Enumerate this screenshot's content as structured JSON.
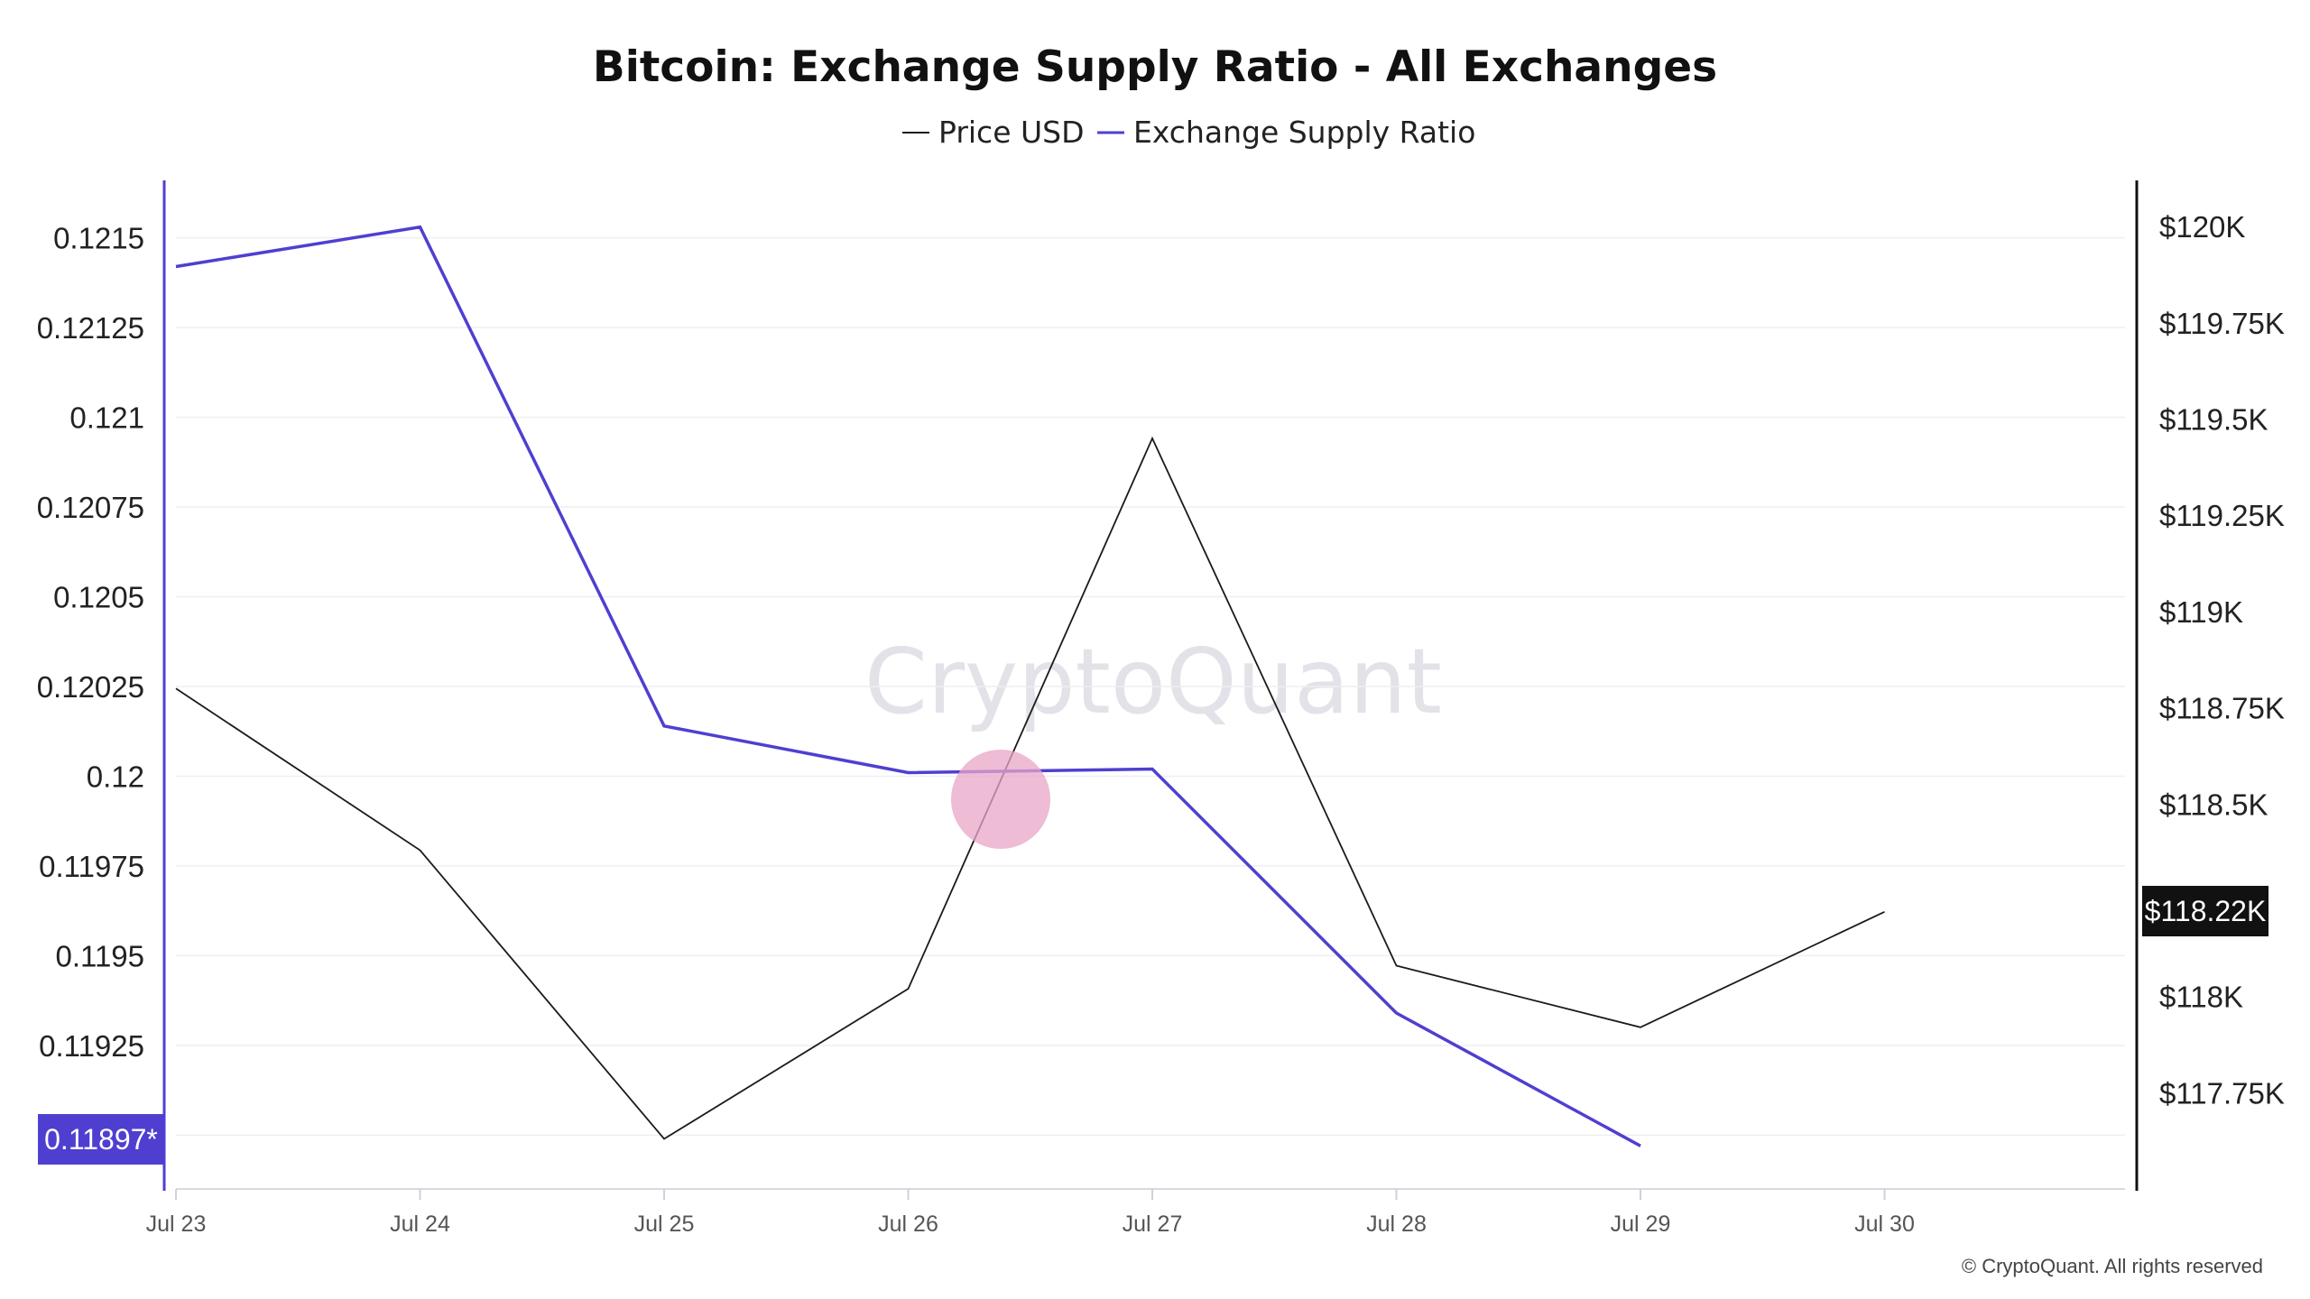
{
  "chart_data": {
    "type": "line",
    "title": "Bitcoin: Exchange Supply Ratio - All Exchanges",
    "legend": [
      "Price USD",
      "Exchange Supply Ratio"
    ],
    "legend_position": "top-center",
    "x": [
      "Jul 23",
      "Jul 24",
      "Jul 25",
      "Jul 26",
      "Jul 27",
      "Jul 28",
      "Jul 29",
      "Jul 30"
    ],
    "series": [
      {
        "name": "Price USD",
        "axis": "right",
        "color": "#1a1a1a",
        "values": [
          118800,
          118380,
          117630,
          118020,
          119450,
          118080,
          117920,
          118220
        ]
      },
      {
        "name": "Exchange Supply Ratio",
        "axis": "left",
        "color": "#4f3fd0",
        "values": [
          0.12142,
          0.12153,
          0.12014,
          0.12001,
          0.12002,
          0.11934,
          0.11897,
          null
        ]
      }
    ],
    "y_left": {
      "ticks": [
        "0.1215",
        "0.12125",
        "0.121",
        "0.12075",
        "0.1205",
        "0.12025",
        "0.12",
        "0.11975",
        "0.1195",
        "0.11925"
      ],
      "range": [
        0.11885,
        0.12166
      ],
      "current_label": "0.11897*",
      "color": "#4f3fd0"
    },
    "y_right": {
      "ticks": [
        "$120K",
        "$119.75K",
        "$119.5K",
        "$119.25K",
        "$119K",
        "$118.75K",
        "$118.5K",
        "$118K",
        "$117.75K"
      ],
      "tick_values": [
        120000,
        119750,
        119500,
        119250,
        119000,
        118750,
        118500,
        118000,
        117750
      ],
      "range": [
        117500,
        120120
      ],
      "current_label": "$118.22K"
    },
    "grid": "horizontal",
    "watermark": "CryptoQuant",
    "copyright": "© CryptoQuant. All rights reserved"
  }
}
